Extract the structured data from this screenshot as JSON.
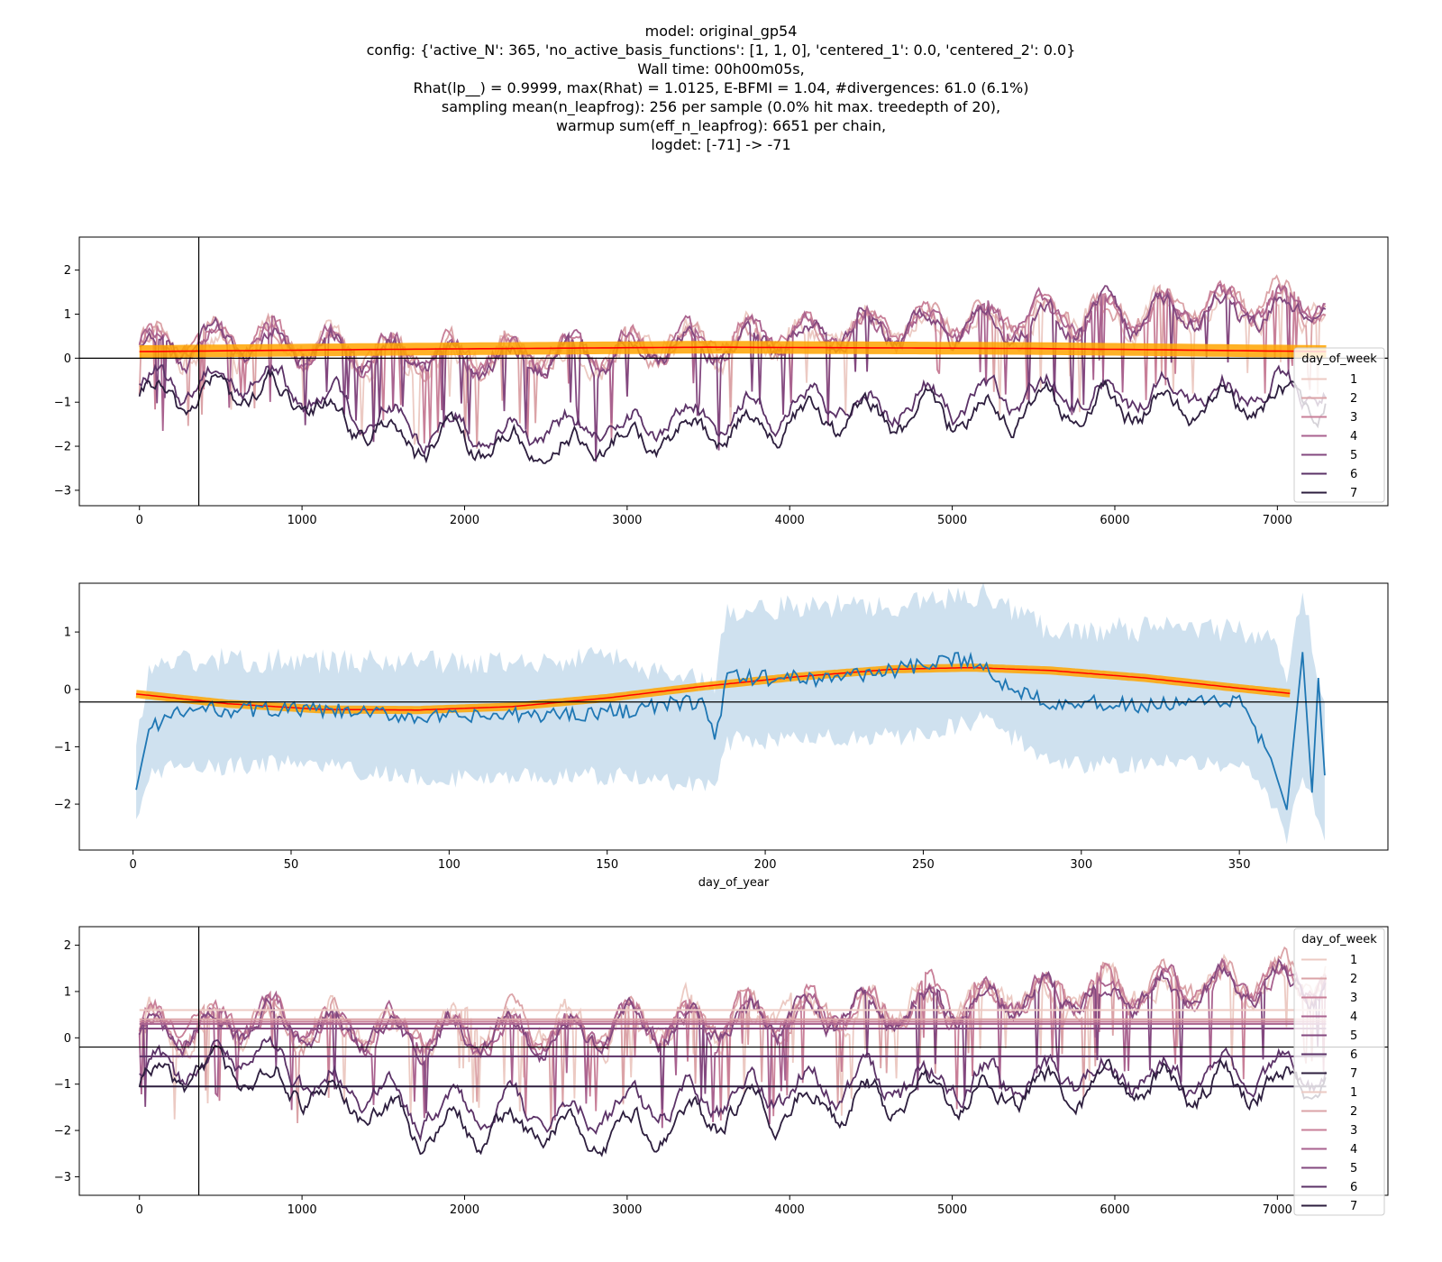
{
  "title_lines": [
    "model: original_gp54",
    "config: {'active_N': 365, 'no_active_basis_functions': [1, 1, 0], 'centered_1': 0.0, 'centered_2': 0.0}",
    "Wall time: 00h00m05s,",
    "Rhat(lp__) = 0.9999, max(Rhat) = 1.0125, E-BFMI = 1.04, #divergences: 61.0 (6.1%)",
    "sampling mean(n_leapfrog): 256 per sample (0.0% hit max. treedepth of 20),",
    "warmup sum(eff_n_leapfrog): 6651 per chain,",
    "logdet: [-71] -> -71"
  ],
  "colors": {
    "day_of_week": [
      "#eccac3",
      "#dba3a7",
      "#c87f98",
      "#a9628f",
      "#83487f",
      "#5b3267",
      "#2d1e3e"
    ],
    "fit_orange": "#ffa500",
    "fit_red": "#ff0000",
    "blue": "#1f77b4",
    "band": "#bfd7ea"
  },
  "chart_data": [
    {
      "type": "line",
      "title": "",
      "xlabel": "",
      "ylabel": "",
      "xlim": [
        -370,
        7680
      ],
      "ylim": [
        -3.35,
        2.75
      ],
      "xticks": [
        0,
        1000,
        2000,
        3000,
        4000,
        5000,
        6000,
        7000
      ],
      "yticks": [
        -3,
        -2,
        -1,
        0,
        1,
        2
      ],
      "hline": 0,
      "vline": 365,
      "legend": {
        "title": "day_of_week",
        "placement": "right",
        "entries": [
          "1",
          "2",
          "3",
          "4",
          "5",
          "6",
          "7"
        ]
      },
      "series": [
        {
          "name": "1",
          "level": [
            0.2,
            0.35,
            0.05,
            0.1,
            0.5,
            0.9,
            1.25
          ],
          "noise": 0.45
        },
        {
          "name": "2",
          "level": [
            0.25,
            0.4,
            0.1,
            0.15,
            0.55,
            0.95,
            1.3
          ],
          "noise": 0.35
        },
        {
          "name": "3",
          "level": [
            0.25,
            0.45,
            0.1,
            0.15,
            0.55,
            0.95,
            1.3
          ],
          "noise": 0.3
        },
        {
          "name": "4",
          "level": [
            0.2,
            0.4,
            0.05,
            0.1,
            0.5,
            0.9,
            1.25
          ],
          "noise": 0.3
        },
        {
          "name": "5",
          "level": [
            0.15,
            0.35,
            0.0,
            0.05,
            0.45,
            0.85,
            1.2
          ],
          "noise": 0.3
        },
        {
          "name": "6",
          "level": [
            -0.7,
            -0.4,
            -1.55,
            -1.65,
            -1.1,
            -0.85,
            -0.75
          ],
          "noise": 0.3
        },
        {
          "name": "7",
          "level": [
            -1.0,
            -0.7,
            -1.9,
            -2.05,
            -1.45,
            -1.15,
            -1.0
          ],
          "noise": 0.3
        }
      ],
      "level_x": [
        0,
        700,
        1700,
        2700,
        4000,
        5500,
        7300
      ],
      "fit": {
        "x": [
          0,
          1500,
          3500,
          5500,
          7300
        ],
        "y": [
          0.15,
          0.2,
          0.25,
          0.22,
          0.15
        ]
      }
    },
    {
      "type": "line",
      "title": "",
      "xlabel": "day_of_year",
      "ylabel": "",
      "xlim": [
        -17,
        397
      ],
      "ylim": [
        -2.8,
        1.85
      ],
      "xticks": [
        0,
        50,
        100,
        150,
        200,
        250,
        300,
        350
      ],
      "yticks": [
        -2,
        -1,
        0,
        1
      ],
      "hline": -0.22,
      "mean_curve": {
        "x": [
          1,
          30,
          60,
          90,
          120,
          150,
          180,
          210,
          240,
          265,
          290,
          320,
          350,
          366
        ],
        "y": [
          -0.08,
          -0.25,
          -0.35,
          -0.36,
          -0.3,
          -0.15,
          0.05,
          0.22,
          0.35,
          0.38,
          0.33,
          0.2,
          0.02,
          -0.07
        ]
      },
      "observed": {
        "x": [
          1,
          5,
          10,
          20,
          50,
          100,
          150,
          180,
          184,
          188,
          220,
          250,
          265,
          275,
          290,
          320,
          350,
          360,
          365,
          370,
          373,
          375,
          377
        ],
        "y": [
          -1.75,
          -0.7,
          -0.5,
          -0.35,
          -0.35,
          -0.5,
          -0.4,
          -0.2,
          -0.85,
          0.2,
          0.2,
          0.4,
          0.55,
          0.1,
          -0.2,
          -0.3,
          -0.2,
          -1.2,
          -2.1,
          0.65,
          -1.8,
          0.2,
          -1.5
        ]
      },
      "band": {
        "x": [
          1,
          5,
          10,
          50,
          100,
          150,
          184,
          188,
          250,
          270,
          290,
          350,
          360,
          365,
          370,
          377
        ],
        "lower": [
          -2.35,
          -1.5,
          -1.4,
          -1.3,
          -1.55,
          -1.5,
          -1.7,
          -0.9,
          -0.8,
          -0.5,
          -1.3,
          -1.3,
          -1.9,
          -2.6,
          -1.5,
          -2.5
        ],
        "upper": [
          -1.0,
          0.3,
          0.5,
          0.5,
          0.45,
          0.55,
          0.1,
          1.4,
          1.5,
          1.65,
          1.05,
          1.05,
          0.8,
          0.2,
          1.65,
          -0.3
        ]
      }
    },
    {
      "type": "line",
      "title": "",
      "xlabel": "",
      "ylabel": "",
      "xlim": [
        -370,
        7680
      ],
      "ylim": [
        -3.4,
        2.4
      ],
      "xticks": [
        0,
        1000,
        2000,
        3000,
        4000,
        5000,
        6000,
        7000
      ],
      "yticks": [
        -3,
        -2,
        -1,
        0,
        1,
        2
      ],
      "hline": -0.2,
      "vline": 365,
      "legend": {
        "title": "day_of_week",
        "placement": "right",
        "entries": [
          "1",
          "2",
          "3",
          "4",
          "5",
          "6",
          "7",
          "1",
          "2",
          "3",
          "4",
          "5",
          "6",
          "7"
        ]
      },
      "weekday_means": [
        0.6,
        0.4,
        0.35,
        0.3,
        0.2,
        -0.4,
        -1.05
      ],
      "series": [
        {
          "name": "1",
          "level": [
            0.2,
            0.35,
            0.05,
            0.1,
            0.5,
            0.9,
            1.25
          ],
          "noise": 0.45
        },
        {
          "name": "2",
          "level": [
            0.25,
            0.4,
            0.1,
            0.15,
            0.55,
            0.95,
            1.3
          ],
          "noise": 0.35
        },
        {
          "name": "3",
          "level": [
            0.25,
            0.45,
            0.1,
            0.15,
            0.55,
            0.95,
            1.3
          ],
          "noise": 0.3
        },
        {
          "name": "4",
          "level": [
            0.2,
            0.4,
            0.05,
            0.1,
            0.5,
            0.9,
            1.25
          ],
          "noise": 0.3
        },
        {
          "name": "5",
          "level": [
            0.15,
            0.35,
            0.0,
            0.05,
            0.45,
            0.85,
            1.2
          ],
          "noise": 0.3
        },
        {
          "name": "6",
          "level": [
            -0.7,
            -0.4,
            -1.55,
            -1.65,
            -1.1,
            -0.85,
            -0.75
          ],
          "noise": 0.3
        },
        {
          "name": "7",
          "level": [
            -1.0,
            -0.7,
            -1.9,
            -2.05,
            -1.45,
            -1.15,
            -1.0
          ],
          "noise": 0.3
        }
      ],
      "level_x": [
        0,
        700,
        1700,
        2700,
        4000,
        5500,
        7300
      ]
    }
  ]
}
